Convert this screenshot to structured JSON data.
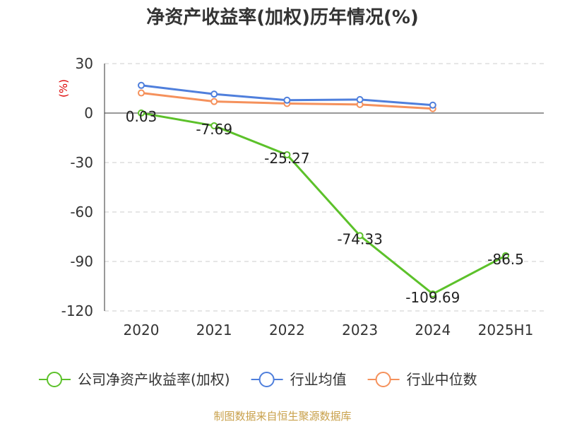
{
  "chart_data": {
    "type": "line",
    "title": "净资产收益率(加权)历年情况(%)",
    "ylabel": "(%)",
    "categories": [
      "2020",
      "2021",
      "2022",
      "2023",
      "2024",
      "2025H1"
    ],
    "ylim": [
      -120,
      30
    ],
    "yticks": [
      "30",
      "0",
      "-30",
      "-60",
      "-90",
      "-120"
    ],
    "series": [
      {
        "name": "公司净资产收益率(加权)",
        "color": "#5cc12a",
        "values": [
          0.03,
          -7.69,
          -25.27,
          -74.33,
          -109.69,
          -86.5
        ],
        "labels": [
          "0.03",
          "-7.69",
          "-25.27",
          "-74.33",
          "-109.69",
          "-86.5"
        ]
      },
      {
        "name": "行业均值",
        "color": "#4f7fdc",
        "values": [
          16.8,
          11.5,
          7.8,
          8.2,
          4.8,
          null
        ]
      },
      {
        "name": "行业中位数",
        "color": "#f5915c",
        "values": [
          12.2,
          7.0,
          5.8,
          5.2,
          2.7,
          null
        ]
      }
    ],
    "source": "制图数据来自恒生聚源数据库"
  }
}
